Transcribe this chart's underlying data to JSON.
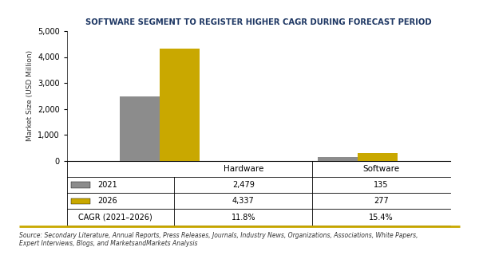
{
  "title": "SOFTWARE SEGMENT TO REGISTER HIGHER CAGR DURING FORECAST PERIOD",
  "categories": [
    "Hardware",
    "Software"
  ],
  "series_2021": [
    2479,
    135
  ],
  "series_2026": [
    4337,
    277
  ],
  "cagr": [
    "11.8%",
    "15.4%"
  ],
  "color_2021": "#8C8C8C",
  "color_2026": "#C9A800",
  "ylabel": "Market Size (USD Million)",
  "ylim": [
    0,
    5000
  ],
  "yticks": [
    0,
    1000,
    2000,
    3000,
    4000,
    5000
  ],
  "table_rows": [
    "2021",
    "2026",
    "CAGR (2021–2026)"
  ],
  "table_values_hw": [
    "2,479",
    "4,337",
    "11.8%"
  ],
  "table_values_sw": [
    "135",
    "277",
    "15.4%"
  ],
  "source_text": "Source: Secondary Literature, Annual Reports, Press Releases, Journals, Industry News, Organizations, Associations, White Papers,\nExpert Interviews, Blogs, and MarketsandMarkets Analysis",
  "title_color": "#1F3864",
  "bar_width": 0.3,
  "group_positions": [
    1.0,
    2.5
  ],
  "legend_colors": [
    "#8C8C8C",
    "#C9A800",
    null
  ],
  "gold_line_color": "#C9A800"
}
